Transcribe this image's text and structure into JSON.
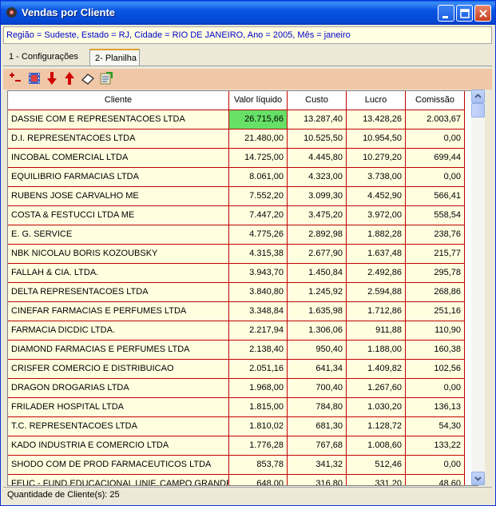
{
  "window": {
    "title": "Vendas por Cliente"
  },
  "filter_text": "Região = Sudeste,  Estado = RJ,  Cidade = RIO DE JANEIRO,  Ano = 2005, Mês = janeiro",
  "tabs": [
    {
      "label": "1 - Configurações",
      "active": false
    },
    {
      "label": "2- Planilha",
      "active": true
    }
  ],
  "toolbar": {
    "buttons": [
      {
        "icon": "plus-minus-icon"
      },
      {
        "icon": "film-strip-icon"
      },
      {
        "icon": "arrow-down-icon"
      },
      {
        "icon": "arrow-up-icon"
      },
      {
        "icon": "eraser-icon"
      },
      {
        "icon": "export-icon"
      }
    ]
  },
  "grid": {
    "columns": [
      "Cliente",
      "Valor líquido",
      "Custo",
      "Lucro",
      "Comissão"
    ],
    "selected_cell": {
      "row": 0,
      "column": 1
    },
    "rows": [
      [
        "DASSIE COM E REPRESENTACOES LTDA",
        "26.715,66",
        "13.287,40",
        "13.428,26",
        "2.003,67"
      ],
      [
        "D.I. REPRESENTACOES LTDA",
        "21.480,00",
        "10.525,50",
        "10.954,50",
        "0,00"
      ],
      [
        "INCOBAL COMERCIAL LTDA",
        "14.725,00",
        "4.445,80",
        "10.279,20",
        "699,44"
      ],
      [
        "EQUILIBRIO FARMACIAS LTDA",
        "8.061,00",
        "4.323,00",
        "3.738,00",
        "0,00"
      ],
      [
        "RUBENS JOSE CARVALHO ME",
        "7.552,20",
        "3.099,30",
        "4.452,90",
        "566,41"
      ],
      [
        "COSTA & FESTUCCI LTDA ME",
        "7.447,20",
        "3.475,20",
        "3.972,00",
        "558,54"
      ],
      [
        "E. G. SERVICE",
        "4.775,26",
        "2.892,98",
        "1.882,28",
        "238,76"
      ],
      [
        "NBK NICOLAU BORIS KOZOUBSKY",
        "4.315,38",
        "2.677,90",
        "1.637,48",
        "215,77"
      ],
      [
        "FALLAH & CIA. LTDA.",
        "3.943,70",
        "1.450,84",
        "2.492,86",
        "295,78"
      ],
      [
        "DELTA REPRESENTACOES LTDA",
        "3.840,80",
        "1.245,92",
        "2.594,88",
        "268,86"
      ],
      [
        "CINEFAR FARMACIAS E PERFUMES LTDA",
        "3.348,84",
        "1.635,98",
        "1.712,86",
        "251,16"
      ],
      [
        "FARMACIA DICDIC LTDA.",
        "2.217,94",
        "1.306,06",
        "911,88",
        "110,90"
      ],
      [
        "DIAMOND FARMACIAS E PERFUMES LTDA",
        "2.138,40",
        "950,40",
        "1.188,00",
        "160,38"
      ],
      [
        "CRISFER COMERCIO E DISTRIBUICAO",
        "2.051,16",
        "641,34",
        "1.409,82",
        "102,56"
      ],
      [
        "DRAGON DROGARIAS LTDA",
        "1.968,00",
        "700,40",
        "1.267,60",
        "0,00"
      ],
      [
        "FRILADER HOSPITAL LTDA",
        "1.815,00",
        "784,80",
        "1.030,20",
        "136,13"
      ],
      [
        "T.C. REPRESENTACOES LTDA",
        "1.810,02",
        "681,30",
        "1.128,72",
        "54,30"
      ],
      [
        "KADO INDUSTRIA E COMERCIO LTDA",
        "1.776,28",
        "767,68",
        "1.008,60",
        "133,22"
      ],
      [
        "SHODO COM DE PROD FARMACEUTICOS LTDA",
        "853,78",
        "341,32",
        "512,46",
        "0,00"
      ],
      [
        "FEUC - FUND.EDUCACIONAL UNIF. CAMPO GRANDE",
        "648,00",
        "316,80",
        "331,20",
        "48,60"
      ]
    ]
  },
  "status": {
    "text": "Quantidade de Cliente(s): 25"
  },
  "colors": {
    "titlebar": "#0854E3",
    "toolbar": "#F0C8A8",
    "cell_bg": "#FFFFE0",
    "grid_line": "#C00000",
    "selected": "#66E066",
    "filter_text": "#0000CC"
  }
}
